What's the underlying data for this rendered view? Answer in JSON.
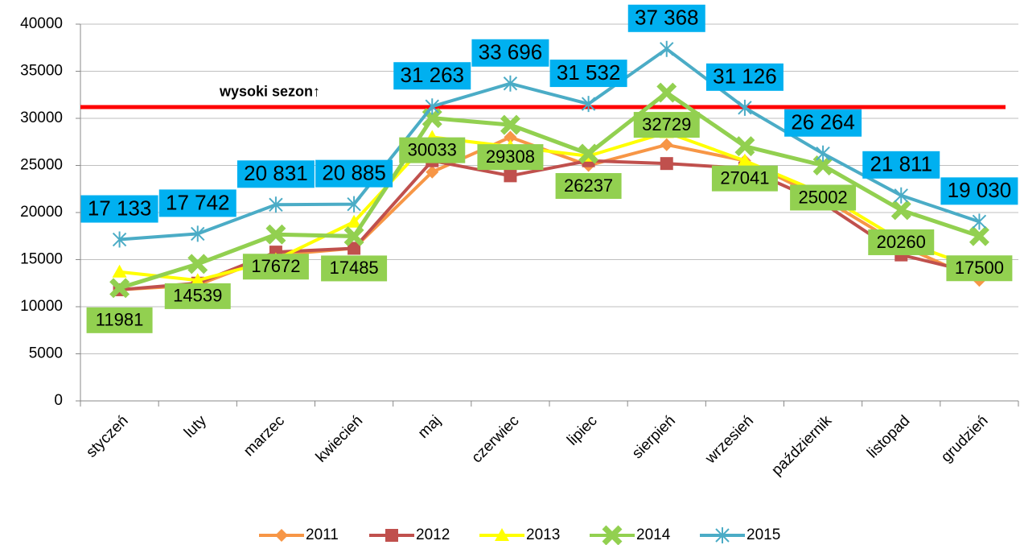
{
  "chart_data": {
    "type": "line",
    "categories": [
      "styczeń",
      "luty",
      "marzec",
      "kwiecień",
      "maj",
      "czerwiec",
      "lipiec",
      "sierpień",
      "wrzesień",
      "październik",
      "listopad",
      "grudzień"
    ],
    "series": [
      {
        "name": "2011",
        "color": "#f79646",
        "marker": "diamond",
        "values": [
          11800,
          12300,
          15500,
          16200,
          24300,
          28000,
          25000,
          27200,
          25500,
          21500,
          16500,
          12800
        ]
      },
      {
        "name": "2012",
        "color": "#c0504d",
        "marker": "square",
        "values": [
          11800,
          12500,
          15800,
          16200,
          25500,
          23900,
          25500,
          25200,
          24700,
          21000,
          15500,
          13500
        ]
      },
      {
        "name": "2013",
        "color": "#ffff00",
        "marker": "triangle",
        "values": [
          13700,
          12800,
          15000,
          19000,
          28000,
          27000,
          26000,
          28500,
          25500,
          22000,
          17000,
          14000
        ]
      },
      {
        "name": "2014",
        "color": "#92d050",
        "marker": "x",
        "values": [
          11981,
          14539,
          17672,
          17485,
          30033,
          29308,
          26237,
          32729,
          27041,
          25002,
          20260,
          17500
        ]
      },
      {
        "name": "2015",
        "color": "#4bacc6",
        "marker": "star",
        "values": [
          17133,
          17742,
          20831,
          20885,
          31263,
          33696,
          31532,
          37368,
          31126,
          26264,
          21811,
          19030
        ],
        "value_labels": [
          "17 133",
          "17 742",
          "20 831",
          "20 885",
          "31 263",
          "33 696",
          "31 532",
          "37 368",
          "31 126",
          "26 264",
          "21 811",
          "19 030"
        ]
      }
    ],
    "ylim": [
      0,
      40000
    ],
    "yticks": [
      0,
      5000,
      10000,
      15000,
      20000,
      25000,
      30000,
      35000,
      40000
    ],
    "grid": true,
    "annotation": {
      "text": "wysoki sezon↑",
      "value": 31200,
      "color": "#ff0000"
    },
    "legend": "bottom"
  }
}
